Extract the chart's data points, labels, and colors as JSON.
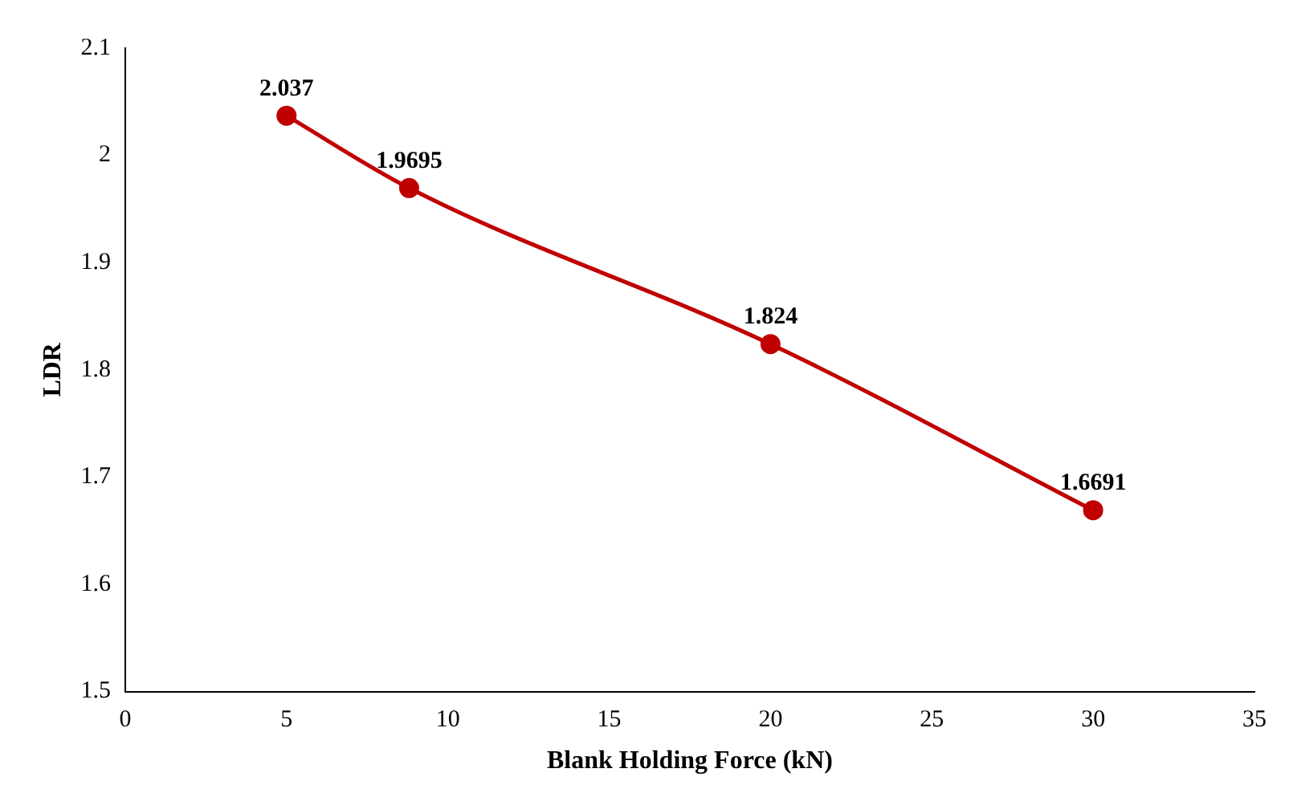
{
  "chart_data": {
    "type": "line",
    "xlabel": "Blank Holding Force (kN)",
    "ylabel": "LDR",
    "x": [
      5,
      8.8,
      20,
      30
    ],
    "series": [
      {
        "color": "#c00000",
        "values": [
          2.037,
          1.9695,
          1.824,
          1.6691
        ]
      }
    ],
    "xlim": [
      0,
      35
    ],
    "xticks": [
      0,
      5,
      10,
      15,
      20,
      25,
      30,
      35
    ],
    "ylim": [
      1.5,
      2.1
    ],
    "yticks": [
      1.5,
      1.6,
      1.7,
      1.8,
      1.9,
      2,
      2.1
    ],
    "grid": false,
    "legend": false,
    "marker": "circle",
    "line_style": "solid",
    "data_labels": true
  }
}
